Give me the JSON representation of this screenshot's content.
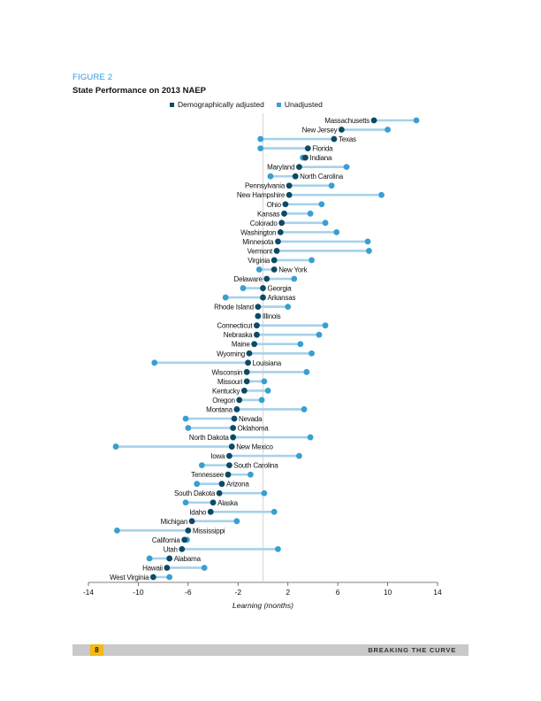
{
  "figure_label": "FIGURE 2",
  "figure_title": "State Performance on 2013 NAEP",
  "footer": {
    "page_number": "8",
    "publication_title": "BREAKING THE CURVE"
  },
  "colors": {
    "adjusted": "#0d4a66",
    "unadjusted": "#3a9fd0",
    "connector": "#a8d1ea",
    "zero_line": "#cccccc"
  },
  "chart_data": {
    "type": "dumbbell",
    "title": "State Performance on 2013 NAEP",
    "xlabel": "Learning (months)",
    "ylabel": "",
    "xlim": [
      -14,
      14
    ],
    "xticks": [
      -14,
      -10,
      -6,
      -2,
      2,
      6,
      10,
      14
    ],
    "grid": false,
    "legend_position": "top",
    "series_names": [
      "Demographically adjusted",
      "Unadjusted"
    ],
    "categories": [
      "Massachusetts",
      "New Jersey",
      "Texas",
      "Florida",
      "Indiana",
      "Maryland",
      "North Carolina",
      "Pennsylvania",
      "New Hampshire",
      "Ohio",
      "Kansas",
      "Colorado",
      "Washington",
      "Minnesota",
      "Vermont",
      "Virginia",
      "New York",
      "Delaware",
      "Georgia",
      "Arkansas",
      "Rhode Island",
      "Illinois",
      "Connecticut",
      "Nebraska",
      "Maine",
      "Wyoming",
      "Louisiana",
      "Wisconsin",
      "Missouri",
      "Kentucky",
      "Oregon",
      "Montana",
      "Nevada",
      "Oklahoma",
      "North Dakota",
      "New Mexico",
      "Iowa",
      "South Carolina",
      "Tennessee",
      "Arizona",
      "South Dakota",
      "Alaska",
      "Idaho",
      "Michigan",
      "Mississippi",
      "California",
      "Utah",
      "Alabama",
      "Hawaii",
      "West Virginia"
    ],
    "adjusted": [
      8.9,
      6.3,
      5.7,
      3.6,
      3.4,
      2.9,
      2.6,
      2.1,
      2.1,
      1.8,
      1.7,
      1.5,
      1.4,
      1.2,
      1.1,
      0.9,
      0.9,
      0.3,
      0.0,
      0.0,
      -0.4,
      -0.4,
      -0.5,
      -0.5,
      -0.7,
      -1.1,
      -1.2,
      -1.3,
      -1.3,
      -1.5,
      -1.9,
      -2.1,
      -2.3,
      -2.4,
      -2.4,
      -2.5,
      -2.7,
      -2.7,
      -2.8,
      -3.3,
      -3.5,
      -4.0,
      -4.2,
      -5.7,
      -6.0,
      -6.3,
      -6.5,
      -7.5,
      -7.7,
      -8.8
    ],
    "unadjusted": [
      12.3,
      10.0,
      -0.2,
      -0.2,
      3.2,
      6.7,
      0.6,
      5.5,
      9.5,
      4.7,
      3.8,
      5.0,
      5.9,
      8.4,
      8.5,
      3.9,
      -0.3,
      2.5,
      -1.6,
      -3.0,
      2.0,
      -0.4,
      5.0,
      4.5,
      3.0,
      3.9,
      -8.7,
      3.5,
      0.1,
      0.4,
      -0.1,
      3.3,
      -6.2,
      -6.0,
      3.8,
      -11.8,
      2.9,
      -4.9,
      -1.0,
      -5.3,
      0.1,
      -6.2,
      0.9,
      -2.1,
      -11.7,
      -6.1,
      1.2,
      -9.1,
      -4.7,
      -7.5
    ]
  }
}
